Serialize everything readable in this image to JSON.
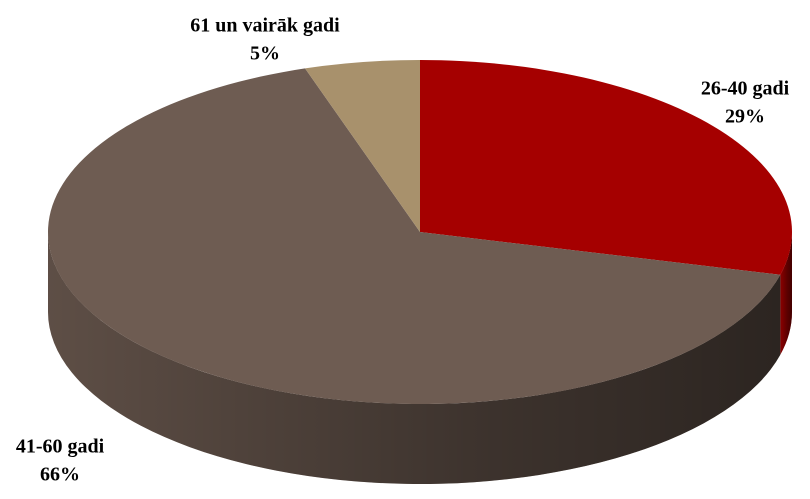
{
  "chart_data": {
    "type": "pie",
    "categories": [
      "26-40 gadi",
      "41-60 gadi",
      "61 un vairāk gadi"
    ],
    "values": [
      29,
      66,
      5
    ],
    "value_labels": [
      "29%",
      "66%",
      "5%"
    ],
    "colors": [
      "#a50000",
      "#6e5c52",
      "#a8916c"
    ]
  }
}
